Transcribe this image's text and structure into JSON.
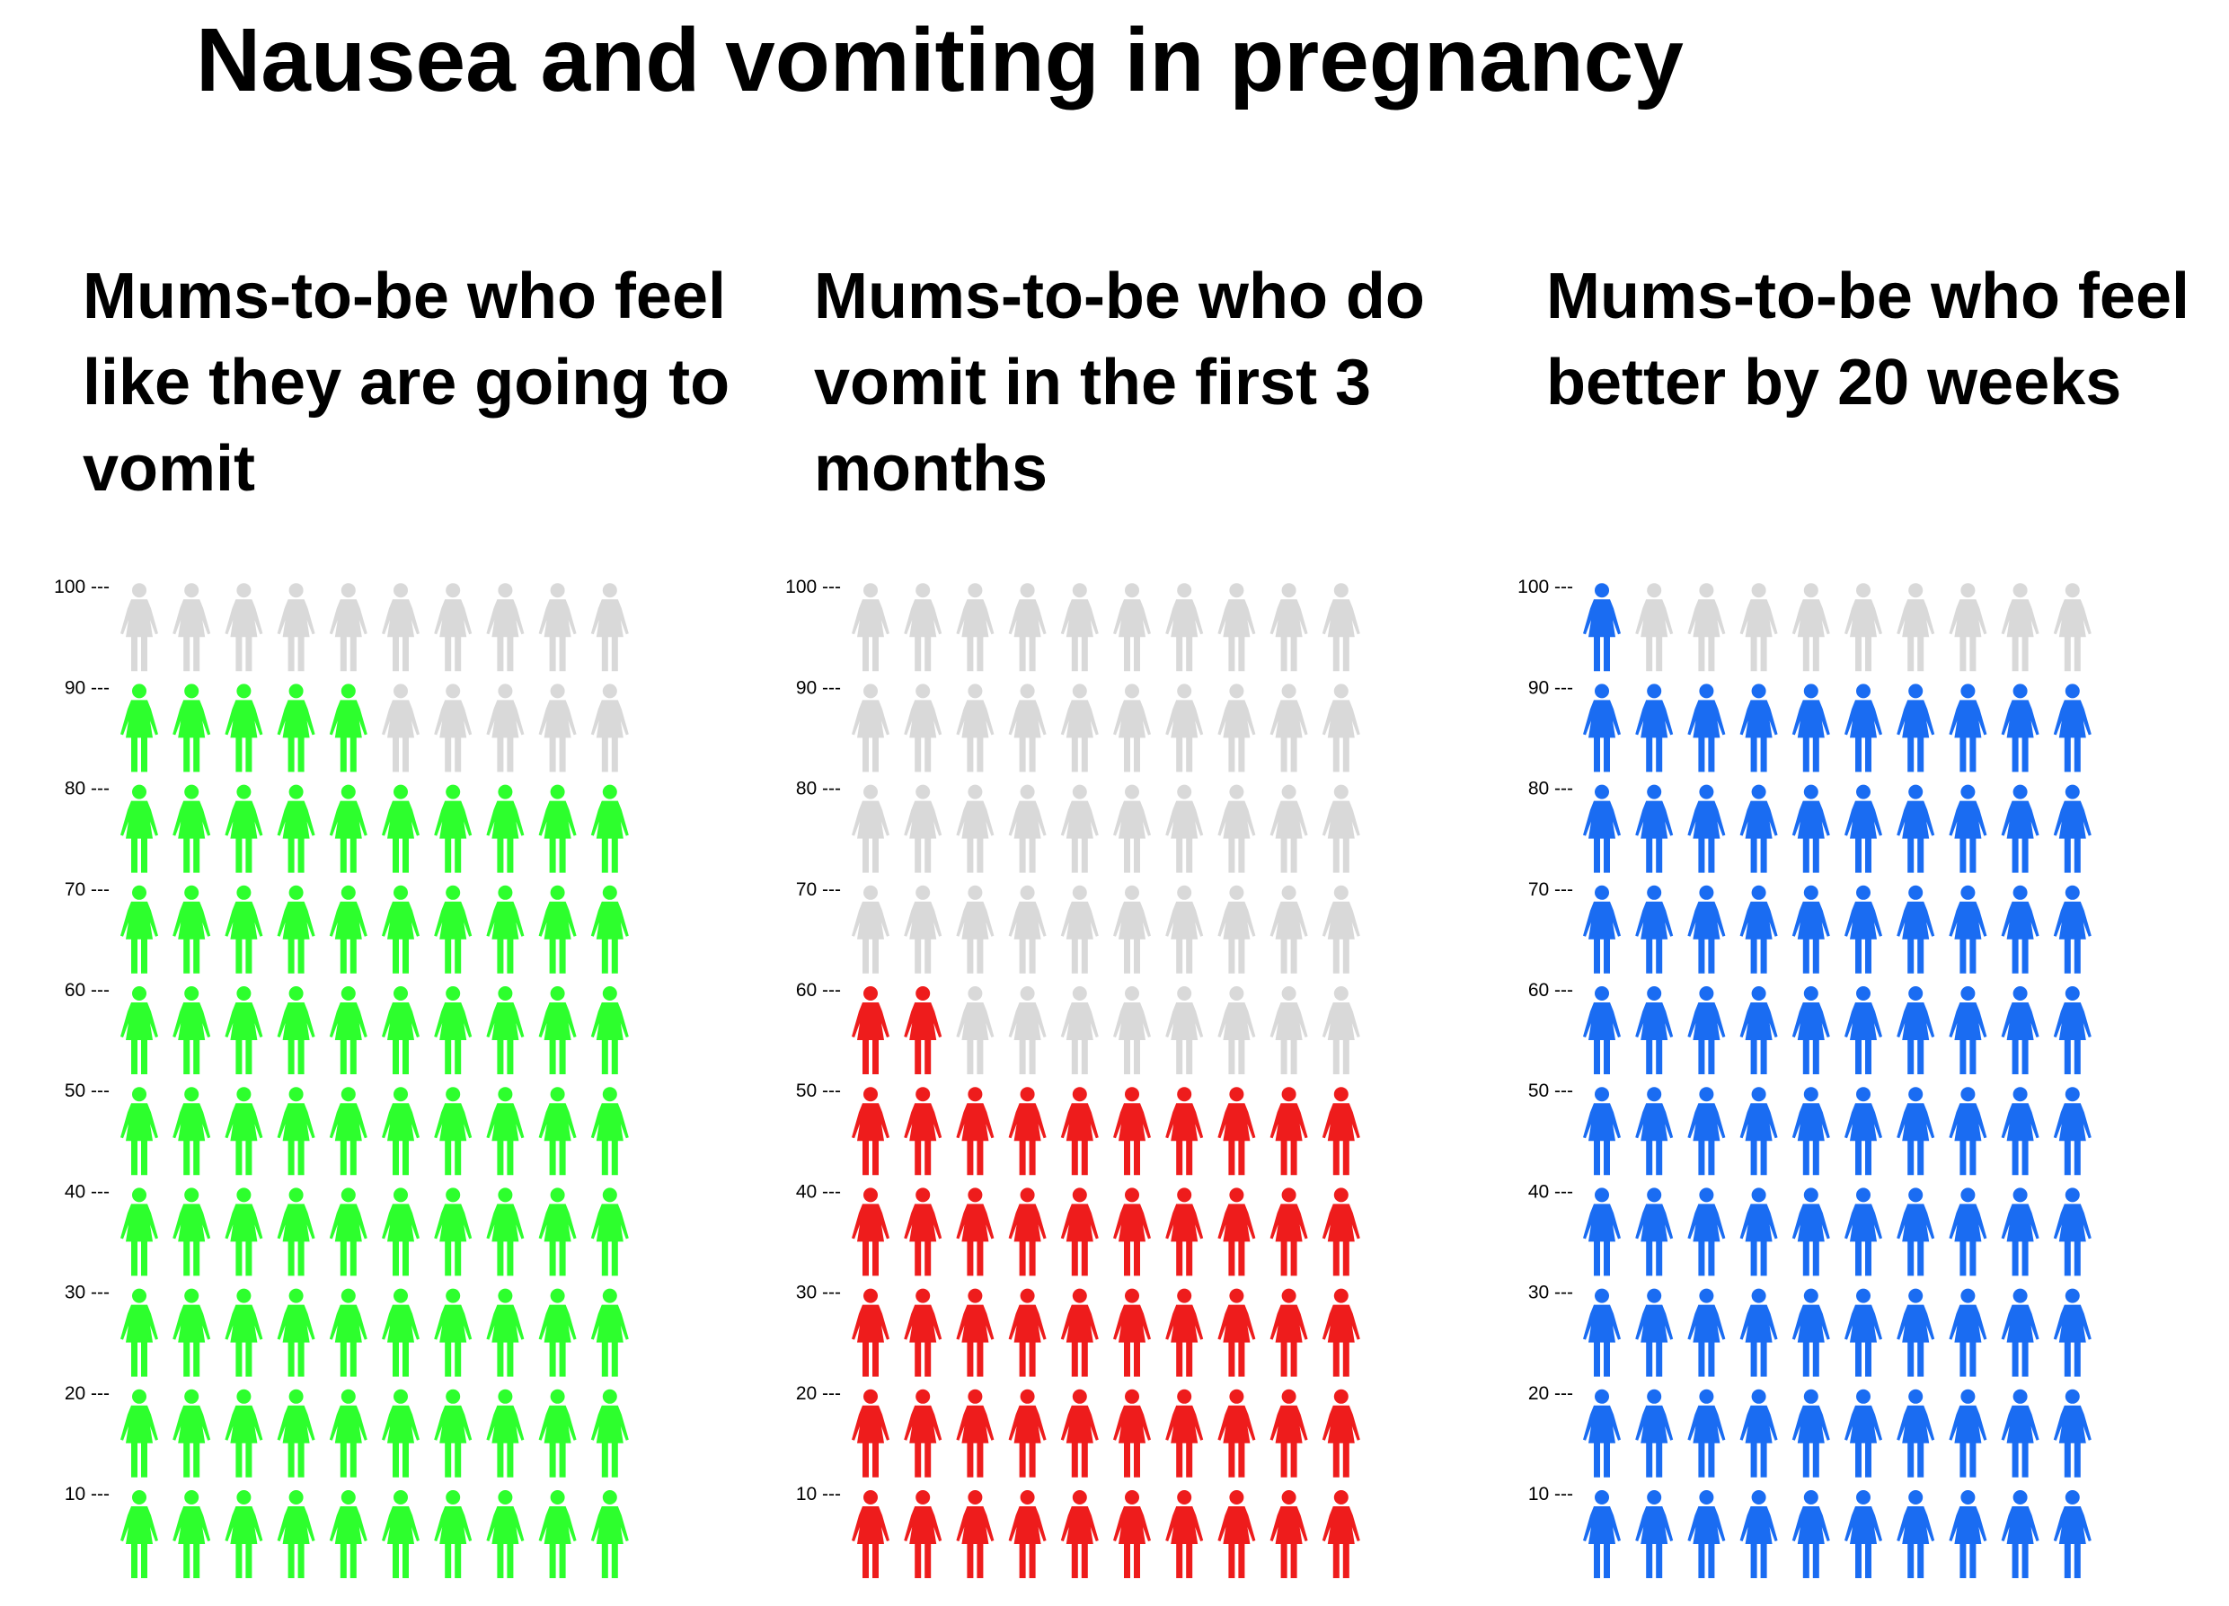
{
  "title": "Nausea and vomiting in pregnancy",
  "panels": [
    {
      "title": "Mums-to-be who feel like they are going to vomit"
    },
    {
      "title": "Mums-to-be who do vomit in the first 3 months"
    },
    {
      "title": "Mums-to-be who feel better by 20 weeks"
    }
  ],
  "colors": {
    "inactive": "#d9d9d9",
    "panel_0": "#2dff2d",
    "panel_1": "#ee1c1c",
    "panel_2": "#1a6cf2"
  },
  "chart_data": [
    {
      "type": "pictogram",
      "title": "Mums-to-be who feel like they are going to vomit",
      "icon": "woman-icon",
      "total": 100,
      "value": 85,
      "color": "#2dff2d",
      "inactive_color": "#d9d9d9",
      "columns": 10,
      "rows": 10,
      "yticks": [
        "10 ---",
        "20 ---",
        "30 ---",
        "40 ---",
        "50 ---",
        "60 ---",
        "70 ---",
        "80 ---",
        "90 ---",
        "100 ---"
      ]
    },
    {
      "type": "pictogram",
      "title": "Mums-to-be who do vomit in the first 3 months",
      "icon": "woman-icon",
      "total": 100,
      "value": 52,
      "color": "#ee1c1c",
      "inactive_color": "#d9d9d9",
      "columns": 10,
      "rows": 10,
      "yticks": [
        "10 ---",
        "20 ---",
        "30 ---",
        "40 ---",
        "50 ---",
        "60 ---",
        "70 ---",
        "80 ---",
        "90 ---",
        "100 ---"
      ]
    },
    {
      "type": "pictogram",
      "title": "Mums-to-be who feel better by 20 weeks",
      "icon": "woman-icon",
      "total": 100,
      "value": 91,
      "color": "#1a6cf2",
      "inactive_color": "#d9d9d9",
      "columns": 10,
      "rows": 10,
      "yticks": [
        "10 ---",
        "20 ---",
        "30 ---",
        "40 ---",
        "50 ---",
        "60 ---",
        "70 ---",
        "80 ---",
        "90 ---",
        "100 ---"
      ]
    }
  ]
}
